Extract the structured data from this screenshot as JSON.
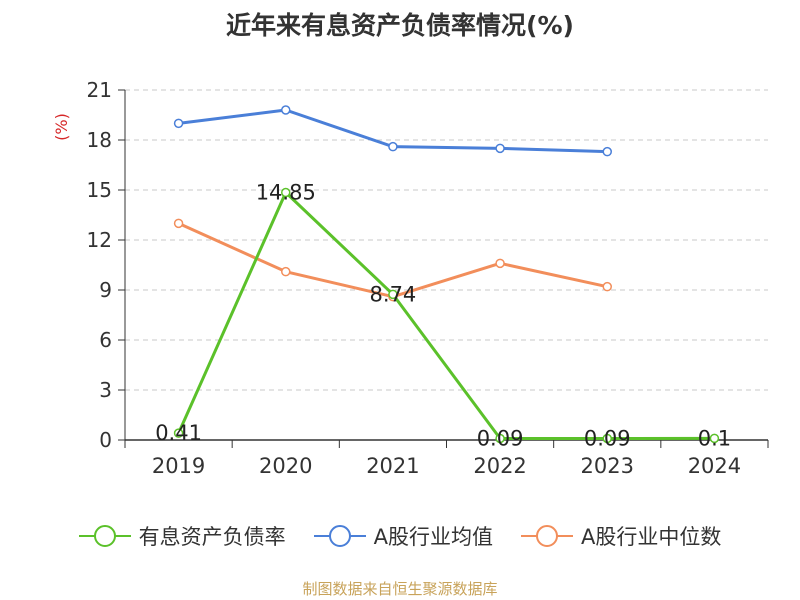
{
  "chart_data": {
    "type": "line",
    "title": "近年来有息资产负债率情况(%)",
    "ylabel": "(%)",
    "xlabel": "",
    "categories": [
      "2019",
      "2020",
      "2021",
      "2022",
      "2023",
      "2024"
    ],
    "ylim": [
      0,
      21
    ],
    "yticks": [
      0,
      3,
      6,
      9,
      12,
      15,
      18,
      21
    ],
    "grid": true,
    "legend_position": "bottom",
    "series": [
      {
        "name": "有息资产负债率",
        "color": "#5bc12a",
        "values": [
          0.41,
          14.85,
          8.74,
          0.09,
          0.09,
          0.1
        ],
        "labels": [
          "0.41",
          "14.85",
          "8.74",
          "0.09",
          "0.09",
          "0.1"
        ]
      },
      {
        "name": "A股行业均值",
        "color": "#4a7fd8",
        "values": [
          19.0,
          19.8,
          17.6,
          17.5,
          17.3,
          null
        ]
      },
      {
        "name": "A股行业中位数",
        "color": "#f28e5b",
        "values": [
          13.0,
          10.1,
          8.6,
          10.6,
          9.2,
          null
        ]
      }
    ],
    "source": "制图数据来自恒生聚源数据库"
  }
}
